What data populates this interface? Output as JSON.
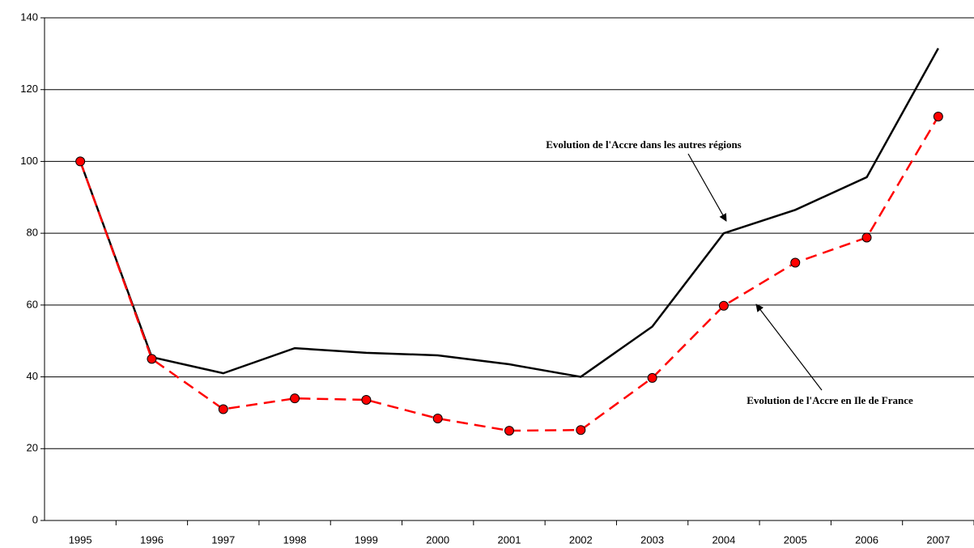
{
  "chart_data": {
    "type": "line",
    "categories": [
      "1995",
      "1996",
      "1997",
      "1998",
      "1999",
      "2000",
      "2001",
      "2002",
      "2003",
      "2004",
      "2005",
      "2006",
      "2007"
    ],
    "series": [
      {
        "name": "Evolution de l'Accre dans les autres régions",
        "color": "#000000",
        "values": [
          100,
          45.5,
          41,
          48,
          46.7,
          46,
          43.5,
          40,
          54,
          80,
          86.5,
          95.6,
          131.5
        ]
      },
      {
        "name": "Evolution de l'Accre en Ile de France",
        "color": "#ff0000",
        "values": [
          100,
          45,
          31,
          34,
          33.6,
          28.4,
          25,
          25.2,
          39.7,
          59.8,
          71.8,
          78.8,
          112.5
        ]
      }
    ],
    "ylim": [
      0,
      140
    ],
    "yticks": [
      0,
      20,
      40,
      60,
      80,
      100,
      120,
      140
    ],
    "grid": true
  }
}
